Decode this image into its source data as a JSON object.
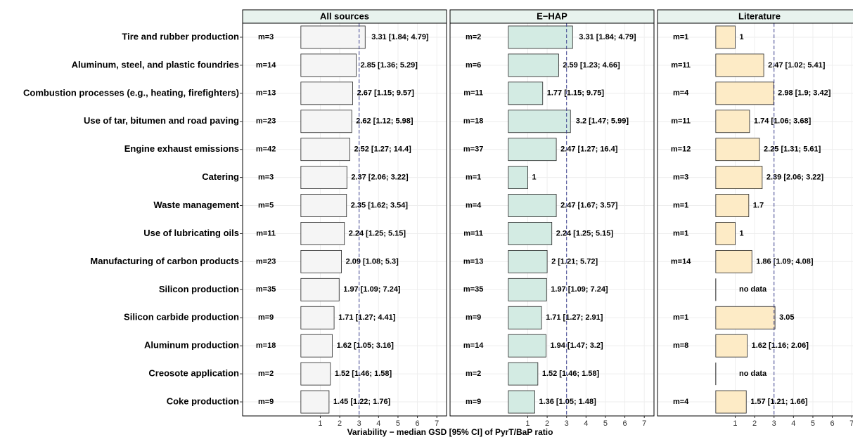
{
  "chart_data": {
    "type": "bar",
    "categories": [
      "Tire and rubber production",
      "Aluminum, steel, and plastic foundries",
      "Combustion processes (e.g., heating, firefighters)",
      "Use of tar, bitumen and road paving",
      "Engine exhaust emissions",
      "Catering",
      "Waste management",
      "Use of lubricating oils",
      "Manufacturing of carbon products",
      "Silicon production",
      "Silicon carbide production",
      "Aluminum production",
      "Creosote application",
      "Coke production"
    ],
    "xlabel": "Variability − median GSD [95% CI] of PyrT/BaP ratio",
    "xlim": [
      -3,
      7.5
    ],
    "xticks": [
      1,
      2,
      3,
      4,
      5,
      6,
      7
    ],
    "reference_line": 3,
    "grid": true,
    "series": [
      {
        "name": "All sources",
        "color": "#f5f5f5",
        "m_labels": [
          "m=3",
          "m=14",
          "m=13",
          "m=23",
          "m=42",
          "m=3",
          "m=5",
          "m=11",
          "m=23",
          "m=35",
          "m=9",
          "m=18",
          "m=2",
          "m=9"
        ],
        "values": [
          3.31,
          2.85,
          2.67,
          2.62,
          2.52,
          2.37,
          2.35,
          2.24,
          2.09,
          1.97,
          1.71,
          1.62,
          1.52,
          1.45
        ],
        "value_labels": [
          "3.31 [1.84; 4.79]",
          "2.85 [1.36; 5.29]",
          "2.67 [1.15; 9.57]",
          "2.62 [1.12; 5.98]",
          "2.52 [1.27; 14.4]",
          "2.37 [2.06; 3.22]",
          "2.35 [1.62; 3.54]",
          "2.24 [1.25; 5.15]",
          "2.09 [1.08; 5.3]",
          "1.97 [1.09; 7.24]",
          "1.71 [1.27; 4.41]",
          "1.62 [1.05; 3.16]",
          "1.52 [1.46; 1.58]",
          "1.45 [1.22; 1.76]"
        ]
      },
      {
        "name": "E−HAP",
        "color": "#d3ebe3",
        "m_labels": [
          "m=2",
          "m=6",
          "m=11",
          "m=18",
          "m=37",
          "m=1",
          "m=4",
          "m=11",
          "m=13",
          "m=35",
          "m=9",
          "m=14",
          "m=2",
          "m=9"
        ],
        "values": [
          3.31,
          2.59,
          1.77,
          3.2,
          2.47,
          1,
          2.47,
          2.24,
          2,
          1.97,
          1.71,
          1.94,
          1.52,
          1.36
        ],
        "value_labels": [
          "3.31 [1.84; 4.79]",
          "2.59 [1.23; 4.66]",
          "1.77 [1.15; 9.75]",
          "3.2 [1.47; 5.99]",
          "2.47 [1.27; 16.4]",
          "1",
          "2.47 [1.67; 3.57]",
          "2.24 [1.25; 5.15]",
          "2 [1.21; 5.72]",
          "1.97 [1.09; 7.24]",
          "1.71 [1.27; 2.91]",
          "1.94 [1.47; 3.2]",
          "1.52 [1.46; 1.58]",
          "1.36 [1.05; 1.48]"
        ]
      },
      {
        "name": "Literature",
        "color": "#fdebc6",
        "m_labels": [
          "m=1",
          "m=11",
          "m=4",
          "m=11",
          "m=12",
          "m=3",
          "m=1",
          "m=1",
          "m=14",
          null,
          "m=1",
          "m=8",
          null,
          "m=4"
        ],
        "values": [
          1,
          2.47,
          2.98,
          1.74,
          2.25,
          2.39,
          1.7,
          1,
          1.86,
          null,
          3.05,
          1.62,
          null,
          1.57
        ],
        "value_labels": [
          "1",
          "2.47 [1.02; 5.41]",
          "2.98 [1.9; 3.42]",
          "1.74 [1.06; 3.68]",
          "2.25 [1.31; 5.61]",
          "2.39 [2.06; 3.22]",
          "1.7",
          "1",
          "1.86 [1.09; 4.08]",
          "no data",
          "3.05",
          "1.62 [1.16; 2.06]",
          "no data",
          "1.57 [1.21; 1.66]"
        ]
      }
    ]
  }
}
